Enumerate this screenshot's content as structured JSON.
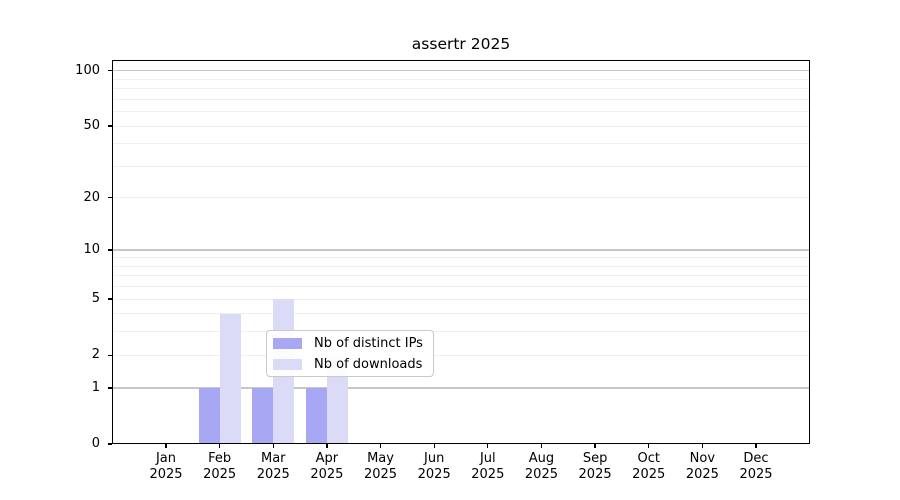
{
  "chart_data": {
    "type": "bar",
    "title": "assertr 2025",
    "categories": [
      "Jan",
      "Feb",
      "Mar",
      "Apr",
      "May",
      "Jun",
      "Jul",
      "Aug",
      "Sep",
      "Oct",
      "Nov",
      "Dec"
    ],
    "category_year": "2025",
    "series": [
      {
        "name": "Nb of distinct IPs",
        "color": "#a7a7f3",
        "values": [
          0,
          1,
          1,
          1,
          0,
          0,
          0,
          0,
          0,
          0,
          0,
          0
        ]
      },
      {
        "name": "Nb of downloads",
        "color": "#dbdbf8",
        "values": [
          0,
          4,
          5,
          2,
          0,
          0,
          0,
          0,
          0,
          0,
          0,
          0
        ]
      }
    ],
    "y_axis": {
      "scale": "log1p",
      "tick_values": [
        0,
        1,
        2,
        5,
        10,
        20,
        50,
        100
      ],
      "max": 114.4,
      "major_gridlines": [
        1,
        10,
        100
      ],
      "minor_gridlines": [
        2,
        3,
        4,
        5,
        6,
        7,
        8,
        9,
        20,
        30,
        40,
        50,
        60,
        70,
        80,
        90
      ]
    },
    "legend_position": "lower center-right inside plot",
    "colors": {
      "major_grid": "#c7c7c7",
      "minor_grid": "#efefef",
      "spine": "#000000",
      "text": "#000000",
      "background": "#ffffff",
      "legend_border": "#c9c9c9"
    }
  }
}
